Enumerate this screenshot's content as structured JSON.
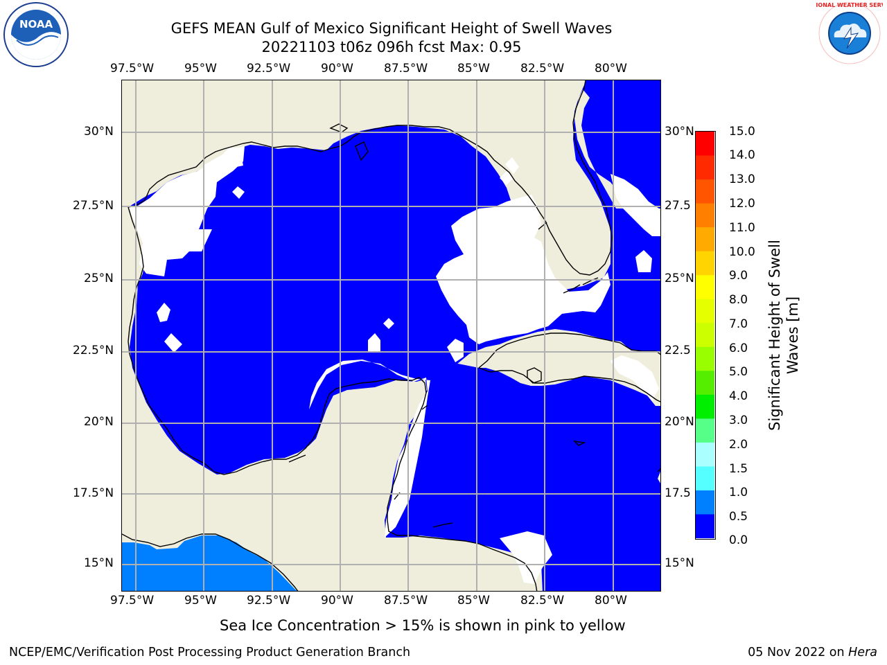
{
  "header": {
    "title": "GEFS MEAN Gulf of Mexico Significant Height of Swell Waves",
    "subtitle": "20221103 t06z 096h fcst   Max: 0.95"
  },
  "map": {
    "lon_ticks": [
      "97.5°W",
      "95°W",
      "92.5°W",
      "90°W",
      "87.5°W",
      "85°W",
      "82.5°W",
      "80°W"
    ],
    "lat_ticks": [
      "30°N",
      "27.5°N",
      "25°N",
      "22.5°N",
      "20°N",
      "17.5°N",
      "15°N"
    ],
    "lat_ticks_right": [
      "30°N",
      "27.5",
      "25°N",
      "22.5",
      "20°N",
      "17.5",
      "15°N"
    ],
    "colors": {
      "land": "#efeedc",
      "water": "#0000ff",
      "swell_low": "#0080ff",
      "grid": "#b0b0b0",
      "missing": "#ffffff"
    }
  },
  "colorbar": {
    "label": "Significant Height of Swell Waves [m]",
    "ticks": [
      "15.0",
      "14.0",
      "13.0",
      "12.0",
      "11.0",
      "10.0",
      "9.0",
      "8.0",
      "7.0",
      "6.0",
      "5.0",
      "4.0",
      "3.0",
      "2.0",
      "1.5",
      "1.0",
      "0.5",
      "0.0"
    ],
    "colors": [
      "#ff0000",
      "#ff2a00",
      "#ff5500",
      "#ff8000",
      "#ffaa00",
      "#ffd400",
      "#ffff00",
      "#e6ff00",
      "#ccff00",
      "#99ff00",
      "#55ee00",
      "#00ee00",
      "#55ff88",
      "#aaffff",
      "#55ffff",
      "#00ffff",
      "#00aaff",
      "#0080ff",
      "#0000ff"
    ]
  },
  "note": "Sea Ice Concentration > 15% is shown in pink to yellow",
  "footer": {
    "left": "NCEP/EMC/Verification Post Processing Product Generation Branch",
    "date": "05 Nov 2022 on ",
    "machine": "Hera"
  },
  "logos": {
    "left": "NOAA",
    "right": "NATIONAL WEATHER SERVICE"
  }
}
